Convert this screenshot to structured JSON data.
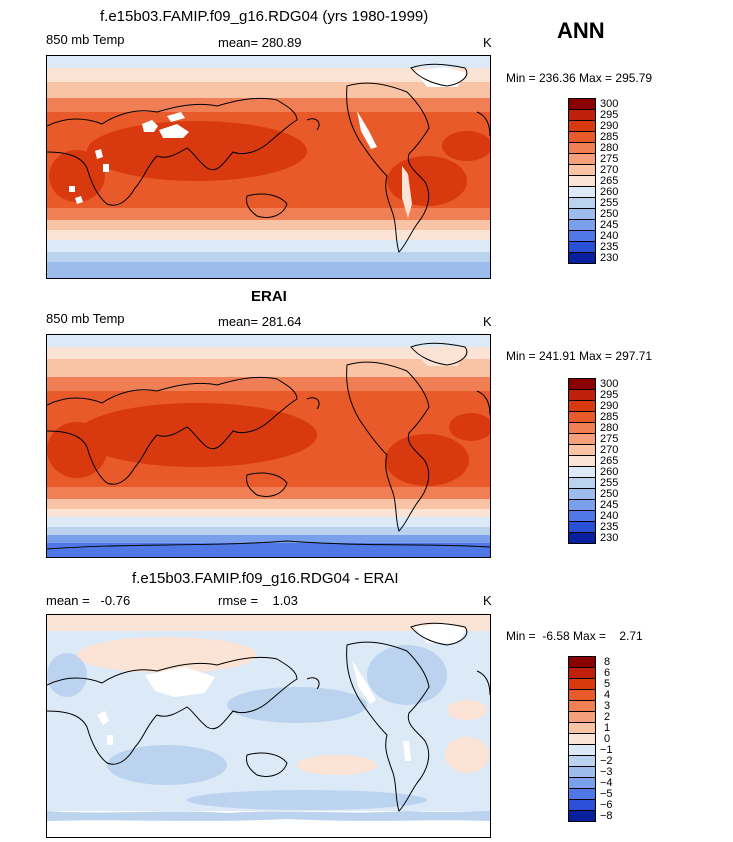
{
  "season": "ANN",
  "panels": [
    {
      "title": "f.e15b03.FAMIP.f09_g16.RDG04 (yrs 1980-1999)",
      "left_label": "850 mb Temp",
      "center_label": "mean= 280.89",
      "units": "K",
      "minmax": "Min = 236.36 Max = 295.79",
      "legend_levels": [
        "300",
        "295",
        "290",
        "285",
        "280",
        "275",
        "270",
        "265",
        "260",
        "255",
        "250",
        "245",
        "240",
        "235",
        "230"
      ],
      "legend_colors": [
        "#8b0000",
        "#c0200a",
        "#d9390f",
        "#e85a2a",
        "#f07f55",
        "#f5a07a",
        "#f9c3a6",
        "#fbe3d5",
        "#dce9f6",
        "#bcd3f0",
        "#9dbcee",
        "#7aa0ec",
        "#4f78e6",
        "#2b50d8",
        "#0a1f9c"
      ]
    },
    {
      "title": "ERAI",
      "left_label": "850 mb Temp",
      "center_label": "mean= 281.64",
      "units": "K",
      "minmax": "Min = 241.91 Max = 297.71",
      "legend_levels": [
        "300",
        "295",
        "290",
        "285",
        "280",
        "275",
        "270",
        "265",
        "260",
        "255",
        "250",
        "245",
        "240",
        "235",
        "230"
      ],
      "legend_colors": [
        "#8b0000",
        "#c0200a",
        "#d9390f",
        "#e85a2a",
        "#f07f55",
        "#f5a07a",
        "#f9c3a6",
        "#fbe3d5",
        "#dce9f6",
        "#bcd3f0",
        "#9dbcee",
        "#7aa0ec",
        "#4f78e6",
        "#2b50d8",
        "#0a1f9c"
      ]
    },
    {
      "title": "f.e15b03.FAMIP.f09_g16.RDG04 - ERAI",
      "left_label": "mean =   -0.76",
      "center_label": "rmse =    1.03",
      "units": "K",
      "minmax": "Min =  -6.58 Max =    2.71",
      "legend_levels": [
        "8",
        "6",
        "5",
        "4",
        "3",
        "2",
        "1",
        "0",
        "−1",
        "−2",
        "−3",
        "−4",
        "−5",
        "−6",
        "−8"
      ],
      "legend_colors": [
        "#8b0000",
        "#c0200a",
        "#d9390f",
        "#e85a2a",
        "#f07f55",
        "#f5a07a",
        "#f9c3a6",
        "#fbe3d5",
        "#dce9f6",
        "#bcd3f0",
        "#9dbcee",
        "#7aa0ec",
        "#4f78e6",
        "#2b50d8",
        "#0a1f9c"
      ]
    }
  ]
}
